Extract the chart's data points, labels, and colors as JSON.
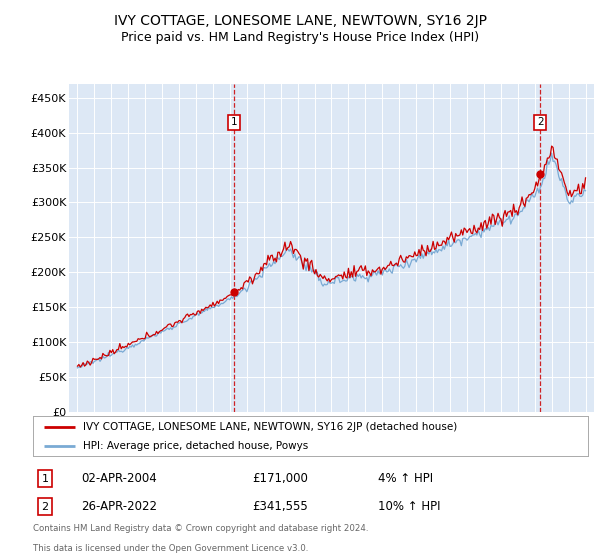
{
  "title": "IVY COTTAGE, LONESOME LANE, NEWTOWN, SY16 2JP",
  "subtitle": "Price paid vs. HM Land Registry's House Price Index (HPI)",
  "ylim": [
    0,
    470000
  ],
  "yticks": [
    0,
    50000,
    100000,
    150000,
    200000,
    250000,
    300000,
    350000,
    400000,
    450000
  ],
  "ytick_labels": [
    "£0",
    "£50K",
    "£100K",
    "£150K",
    "£200K",
    "£250K",
    "£300K",
    "£350K",
    "£400K",
    "£450K"
  ],
  "house_color": "#cc0000",
  "hpi_color": "#7aaad4",
  "plot_bg_color": "#dde8f5",
  "sale1_price": 171000,
  "sale1_date": "02-APR-2004",
  "sale1_pct": "4%",
  "sale2_price": 341555,
  "sale2_date": "26-APR-2022",
  "sale2_pct": "10%",
  "legend_house_label": "IVY COTTAGE, LONESOME LANE, NEWTOWN, SY16 2JP (detached house)",
  "legend_hpi_label": "HPI: Average price, detached house, Powys",
  "footer_line1": "Contains HM Land Registry data © Crown copyright and database right 2024.",
  "footer_line2": "This data is licensed under the Open Government Licence v3.0.",
  "title_fontsize": 10,
  "subtitle_fontsize": 9
}
